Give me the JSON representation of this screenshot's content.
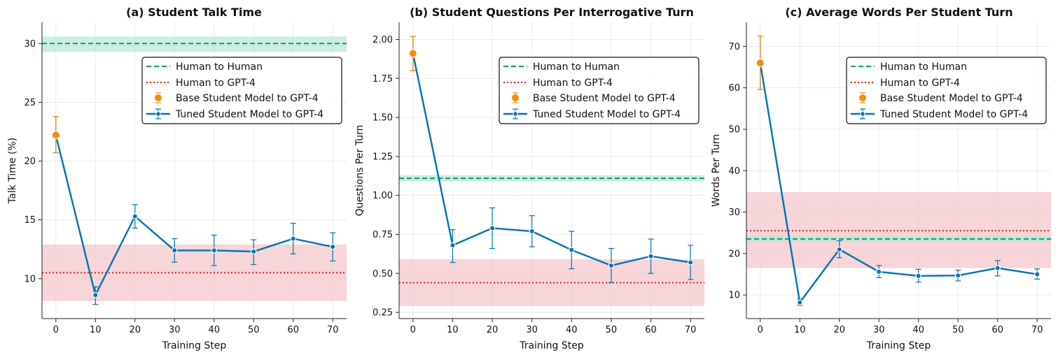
{
  "colors": {
    "human_human": "#009e73",
    "human_gpt4": "#e41a1c",
    "base_model": "#f28e0c",
    "tuned_model": "#0072b2",
    "band_green": "#b9e6d6",
    "band_red": "#f4c3c7"
  },
  "legend_entries": [
    "Human to Human",
    "Human to GPT-4",
    "Base Student Model to GPT-4",
    "Tuned Student Model to GPT-4"
  ],
  "chart_data": [
    {
      "type": "line",
      "title": "(a) Student Talk Time",
      "xlabel": "Training Step",
      "ylabel": "Talk Time (%)",
      "xlim": [
        -3.5,
        73.5
      ],
      "ylim": [
        6.6,
        31.8
      ],
      "xticks": [
        0,
        10,
        20,
        30,
        40,
        50,
        60,
        70
      ],
      "yticks": [
        10,
        15,
        20,
        25,
        30
      ],
      "ytick_labels": [
        "10",
        "15",
        "20",
        "25",
        "30"
      ],
      "human_to_human": {
        "value": 30.0,
        "band": [
          29.3,
          30.6
        ]
      },
      "human_to_gpt4": {
        "value": 10.5,
        "band": [
          8.1,
          12.9
        ]
      },
      "base_student": {
        "x": 0,
        "y": 22.2,
        "err_low": 20.7,
        "err_high": 23.8
      },
      "tuned_student": {
        "x": [
          0,
          10,
          20,
          30,
          40,
          50,
          60,
          70
        ],
        "y": [
          22.2,
          8.6,
          15.3,
          12.4,
          12.4,
          12.3,
          13.4,
          12.7
        ],
        "err_low": [
          20.7,
          7.8,
          14.3,
          11.4,
          11.1,
          11.2,
          12.1,
          11.5
        ],
        "err_high": [
          23.8,
          9.3,
          16.3,
          13.4,
          13.7,
          13.3,
          14.7,
          13.9
        ]
      },
      "legend_position": "upper-right"
    },
    {
      "type": "line",
      "title": "(b) Student Questions Per Interrogative Turn",
      "xlabel": "Training Step",
      "ylabel": "Questions Per Turn",
      "xlim": [
        -3.5,
        73.5
      ],
      "ylim": [
        0.21,
        2.11
      ],
      "xticks": [
        0,
        10,
        20,
        30,
        40,
        50,
        60,
        70
      ],
      "yticks": [
        0.25,
        0.5,
        0.75,
        1.0,
        1.25,
        1.5,
        1.75,
        2.0
      ],
      "ytick_labels": [
        "0.25",
        "0.50",
        "0.75",
        "1.00",
        "1.25",
        "1.50",
        "1.75",
        "2.00"
      ],
      "human_to_human": {
        "value": 1.11,
        "band": [
          1.09,
          1.13
        ]
      },
      "human_to_gpt4": {
        "value": 0.44,
        "band": [
          0.29,
          0.59
        ]
      },
      "base_student": {
        "x": 0,
        "y": 1.91,
        "err_low": 1.8,
        "err_high": 2.02
      },
      "tuned_student": {
        "x": [
          0,
          10,
          20,
          30,
          40,
          50,
          60,
          70
        ],
        "y": [
          1.91,
          0.68,
          0.79,
          0.77,
          0.65,
          0.55,
          0.61,
          0.57
        ],
        "err_low": [
          1.8,
          0.57,
          0.66,
          0.67,
          0.53,
          0.44,
          0.5,
          0.46
        ],
        "err_high": [
          2.02,
          0.78,
          0.92,
          0.87,
          0.77,
          0.66,
          0.72,
          0.68
        ]
      },
      "legend_position": "upper-right"
    },
    {
      "type": "line",
      "title": "(c) Average Words Per Student Turn",
      "xlabel": "Training Step",
      "ylabel": "Words Per Turn",
      "xlim": [
        -3.5,
        73.5
      ],
      "ylim": [
        4.3,
        75.8
      ],
      "xticks": [
        0,
        10,
        20,
        30,
        40,
        50,
        60,
        70
      ],
      "yticks": [
        10,
        20,
        30,
        40,
        50,
        60,
        70
      ],
      "ytick_labels": [
        "10",
        "20",
        "30",
        "40",
        "50",
        "60",
        "70"
      ],
      "human_to_human": {
        "value": 23.5,
        "band": [
          22.8,
          24.2
        ]
      },
      "human_to_gpt4": {
        "value": 25.5,
        "band": [
          16.5,
          34.8
        ]
      },
      "base_student": {
        "x": 0,
        "y": 66.0,
        "err_low": 59.6,
        "err_high": 72.5
      },
      "tuned_student": {
        "x": [
          0,
          10,
          20,
          30,
          40,
          50,
          60,
          70
        ],
        "y": [
          66.0,
          8.2,
          21.0,
          15.6,
          14.6,
          14.7,
          16.5,
          15.0
        ],
        "err_low": [
          59.6,
          7.5,
          19.0,
          14.2,
          13.1,
          13.4,
          14.6,
          13.8
        ],
        "err_high": [
          72.5,
          9.0,
          23.1,
          17.1,
          16.2,
          16.0,
          18.3,
          16.3
        ]
      },
      "legend_position": "upper-right"
    }
  ]
}
